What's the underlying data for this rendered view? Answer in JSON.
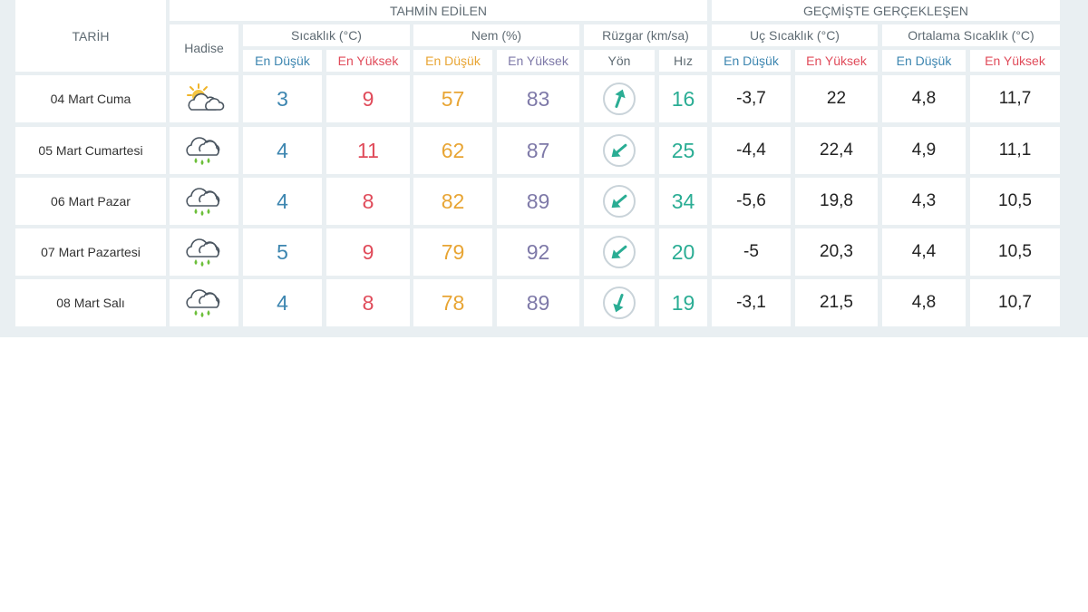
{
  "header": {
    "tarih": "TARİH",
    "tahmin": "TAHMİN EDİLEN",
    "gecmis": "GEÇMİŞTE GERÇEKLEŞEN",
    "hadise": "Hadise",
    "sicaklik": "Sıcaklık (°C)",
    "nem": "Nem (%)",
    "ruzgar": "Rüzgar (km/sa)",
    "uc_sicaklik": "Uç Sıcaklık (°C)",
    "ortalama_sicaklik": "Ortalama Sıcaklık (°C)",
    "en_dusuk": "En Düşük",
    "en_yuksek": "En Yüksek",
    "yon": "Yön",
    "hiz": "Hız"
  },
  "colors": {
    "min": "#3d86b0",
    "max": "#e04b5a",
    "humidity_min": "#e8a534",
    "humidity_max": "#7e79a8",
    "wind": "#2aad94",
    "frame": "#e9eff2"
  },
  "rows": [
    {
      "date": "04 Mart Cuma",
      "icon": "partly-cloudy-sun-icon",
      "temp_min": "3",
      "temp_max": "9",
      "hum_min": "57",
      "hum_max": "83",
      "wind_dir": "northeast-arrow-icon",
      "wind_speed": "16",
      "hist_min": "-3,7",
      "hist_max": "22",
      "avg_min": "4,8",
      "avg_max": "11,7"
    },
    {
      "date": "05 Mart Cumartesi",
      "icon": "rain-cloud-icon",
      "temp_min": "4",
      "temp_max": "11",
      "hum_min": "62",
      "hum_max": "87",
      "wind_dir": "southwest-arrow-icon",
      "wind_speed": "25",
      "hist_min": "-4,4",
      "hist_max": "22,4",
      "avg_min": "4,9",
      "avg_max": "11,1"
    },
    {
      "date": "06 Mart Pazar",
      "icon": "rain-cloud-icon",
      "temp_min": "4",
      "temp_max": "8",
      "hum_min": "82",
      "hum_max": "89",
      "wind_dir": "southwest-arrow-icon",
      "wind_speed": "34",
      "hist_min": "-5,6",
      "hist_max": "19,8",
      "avg_min": "4,3",
      "avg_max": "10,5"
    },
    {
      "date": "07 Mart Pazartesi",
      "icon": "rain-cloud-icon",
      "temp_min": "5",
      "temp_max": "9",
      "hum_min": "79",
      "hum_max": "92",
      "wind_dir": "southwest-arrow-icon",
      "wind_speed": "20",
      "hist_min": "-5",
      "hist_max": "20,3",
      "avg_min": "4,4",
      "avg_max": "10,5"
    },
    {
      "date": "08 Mart Salı",
      "icon": "rain-cloud-icon",
      "temp_min": "4",
      "temp_max": "8",
      "hum_min": "78",
      "hum_max": "89",
      "wind_dir": "south-southwest-arrow-icon",
      "wind_speed": "19",
      "hist_min": "-3,1",
      "hist_max": "21,5",
      "avg_min": "4,8",
      "avg_max": "10,7"
    }
  ]
}
